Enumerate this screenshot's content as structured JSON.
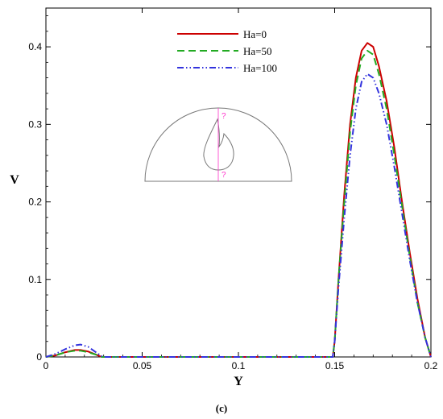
{
  "chart_data": {
    "type": "line",
    "xlabel": "Y",
    "ylabel": "V",
    "xlim": [
      0,
      0.2
    ],
    "ylim": [
      0,
      0.45
    ],
    "x_ticks": [
      0,
      0.05,
      0.1,
      0.15,
      0.2
    ],
    "x_tick_labels": [
      "0",
      "0.05",
      "0.1",
      "0.15",
      "0.2"
    ],
    "y_ticks": [
      0,
      0.1,
      0.2,
      0.3,
      0.4
    ],
    "y_tick_labels": [
      "0",
      "0.1",
      "0.2",
      "0.3",
      "0.4"
    ],
    "grid": false,
    "legend_position": "top-center",
    "caption": "(c)",
    "inset": {
      "marker_top": "?",
      "marker_bottom": "?"
    },
    "series": [
      {
        "name": "Ha=0",
        "color": "#cc0000",
        "style": "solid",
        "points": [
          [
            0,
            0
          ],
          [
            0.005,
            0.002
          ],
          [
            0.01,
            0.006
          ],
          [
            0.015,
            0.009
          ],
          [
            0.018,
            0.009
          ],
          [
            0.022,
            0.007
          ],
          [
            0.026,
            0.003
          ],
          [
            0.029,
            0
          ],
          [
            0.03,
            0
          ],
          [
            0.149,
            0
          ],
          [
            0.15,
            0.02
          ],
          [
            0.152,
            0.1
          ],
          [
            0.155,
            0.21
          ],
          [
            0.158,
            0.3
          ],
          [
            0.161,
            0.36
          ],
          [
            0.164,
            0.395
          ],
          [
            0.167,
            0.405
          ],
          [
            0.17,
            0.4
          ],
          [
            0.173,
            0.375
          ],
          [
            0.177,
            0.33
          ],
          [
            0.181,
            0.27
          ],
          [
            0.185,
            0.2
          ],
          [
            0.189,
            0.135
          ],
          [
            0.193,
            0.075
          ],
          [
            0.197,
            0.025
          ],
          [
            0.2,
            0
          ]
        ]
      },
      {
        "name": "Ha=50",
        "color": "#22aa22",
        "style": "dashed",
        "points": [
          [
            0,
            0
          ],
          [
            0.005,
            0.002
          ],
          [
            0.01,
            0.006
          ],
          [
            0.015,
            0.008
          ],
          [
            0.018,
            0.008
          ],
          [
            0.022,
            0.006
          ],
          [
            0.026,
            0.003
          ],
          [
            0.029,
            0
          ],
          [
            0.03,
            0
          ],
          [
            0.149,
            0
          ],
          [
            0.15,
            0.02
          ],
          [
            0.152,
            0.1
          ],
          [
            0.155,
            0.2
          ],
          [
            0.158,
            0.29
          ],
          [
            0.161,
            0.35
          ],
          [
            0.164,
            0.385
          ],
          [
            0.167,
            0.395
          ],
          [
            0.17,
            0.39
          ],
          [
            0.173,
            0.365
          ],
          [
            0.177,
            0.32
          ],
          [
            0.181,
            0.26
          ],
          [
            0.185,
            0.195
          ],
          [
            0.189,
            0.13
          ],
          [
            0.193,
            0.07
          ],
          [
            0.197,
            0.025
          ],
          [
            0.2,
            0
          ]
        ]
      },
      {
        "name": "Ha=100",
        "color": "#3333dd",
        "style": "dash-dot-dot",
        "points": [
          [
            0,
            0
          ],
          [
            0.005,
            0.004
          ],
          [
            0.01,
            0.01
          ],
          [
            0.015,
            0.015
          ],
          [
            0.018,
            0.016
          ],
          [
            0.022,
            0.013
          ],
          [
            0.026,
            0.006
          ],
          [
            0.029,
            0.001
          ],
          [
            0.03,
            0
          ],
          [
            0.149,
            0
          ],
          [
            0.15,
            0.02
          ],
          [
            0.152,
            0.09
          ],
          [
            0.155,
            0.18
          ],
          [
            0.158,
            0.26
          ],
          [
            0.161,
            0.32
          ],
          [
            0.164,
            0.355
          ],
          [
            0.167,
            0.365
          ],
          [
            0.17,
            0.36
          ],
          [
            0.173,
            0.34
          ],
          [
            0.177,
            0.3
          ],
          [
            0.181,
            0.245
          ],
          [
            0.185,
            0.185
          ],
          [
            0.189,
            0.125
          ],
          [
            0.193,
            0.07
          ],
          [
            0.197,
            0.025
          ],
          [
            0.2,
            0
          ]
        ]
      }
    ]
  }
}
